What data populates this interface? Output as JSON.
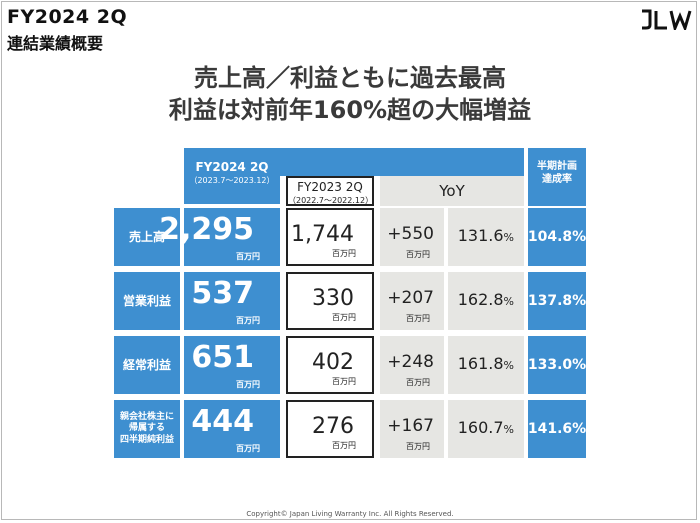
{
  "header": {
    "title": "FY2024  2Q",
    "subtitle": "連結業績概要"
  },
  "logo": {
    "text": "JLW",
    "icon": "company-logo"
  },
  "headline": {
    "line1": "売上高／利益ともに過去最高",
    "line2": "利益は対前年160%超の大幅増益"
  },
  "columns": {
    "current": {
      "label": "FY2024 2Q",
      "period": "（2023.7〜2023.12）"
    },
    "prior": {
      "label": "FY2023 2Q",
      "period": "（2022.7〜2022.12）"
    },
    "yoy": {
      "label": "YoY"
    },
    "rate": {
      "label": "半期計画\n達成率"
    }
  },
  "unit": "百万円",
  "rows": [
    {
      "label": "売上高",
      "current": "2,295",
      "prior": "1,744",
      "diff": "+550",
      "pct": "131.6",
      "rate": "104.8%"
    },
    {
      "label": "営業利益",
      "current": "537",
      "prior": "330",
      "diff": "+207",
      "pct": "162.8",
      "rate": "137.8%"
    },
    {
      "label": "経常利益",
      "current": "651",
      "prior": "402",
      "diff": "+248",
      "pct": "161.8",
      "rate": "133.0%"
    },
    {
      "label": "親会社株主に\n帰属する\n四半期純利益",
      "current": "444",
      "prior": "276",
      "diff": "+167",
      "pct": "160.7",
      "rate": "141.6%"
    }
  ],
  "pct_sign": "%",
  "footer": "Copyright© Japan Living Warranty Inc. All Rights Reserved.",
  "colors": {
    "blue": "#3e8fd0",
    "gray": "#e6e6e3"
  }
}
